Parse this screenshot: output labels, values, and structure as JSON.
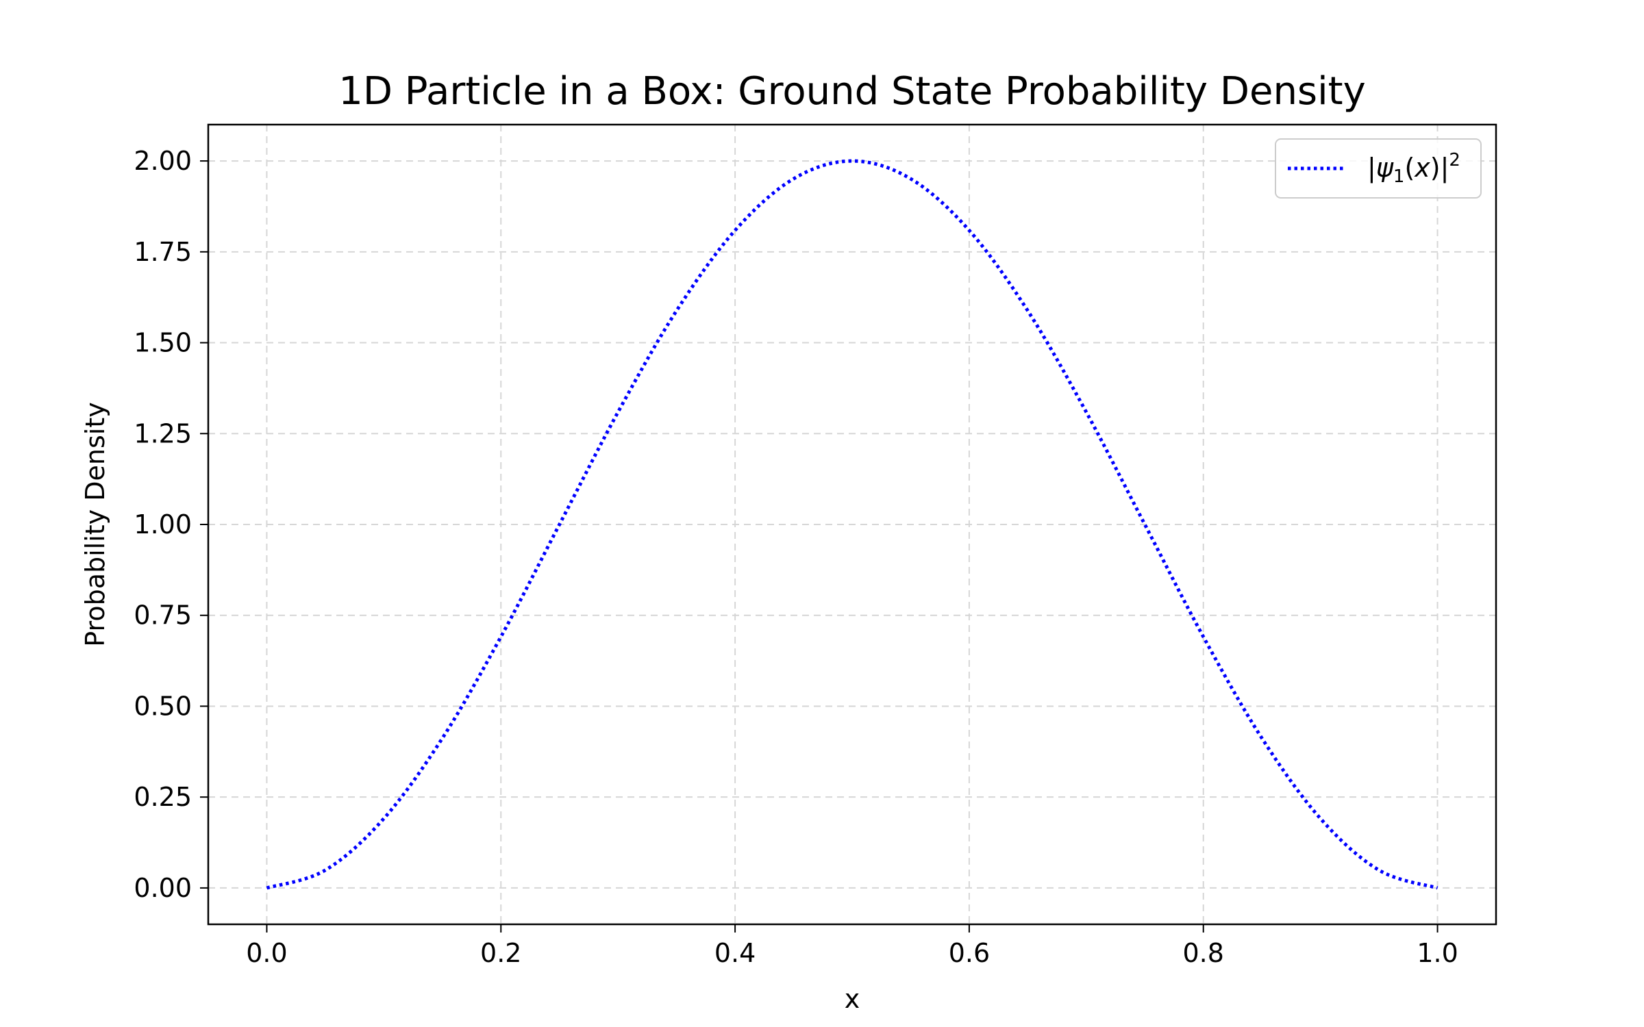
{
  "chart_data": {
    "type": "line",
    "title": "1D Particle in a Box: Ground State Probability Density",
    "xlabel": "x",
    "ylabel": "Probability Density",
    "xlim": [
      -0.05,
      1.05
    ],
    "ylim": [
      -0.1,
      2.1
    ],
    "xticks": [
      0.0,
      0.2,
      0.4,
      0.6,
      0.8,
      1.0
    ],
    "xtick_labels": [
      "0.0",
      "0.2",
      "0.4",
      "0.6",
      "0.8",
      "1.0"
    ],
    "yticks": [
      0.0,
      0.25,
      0.5,
      0.75,
      1.0,
      1.25,
      1.5,
      1.75,
      2.0
    ],
    "ytick_labels": [
      "0.00",
      "0.25",
      "0.50",
      "0.75",
      "1.00",
      "1.25",
      "1.50",
      "1.75",
      "2.00"
    ],
    "grid": true,
    "legend_position": "top-right",
    "series": [
      {
        "name": "|ψ1(x)|2",
        "name_parts": {
          "bar_open": "|",
          "psi": "ψ",
          "sub": "1",
          "open": "(",
          "var": "x",
          "close": ")",
          "bar_close": "|",
          "sup": "2"
        },
        "color": "#0000ff",
        "line_style": "dotted",
        "x": [
          0.0,
          0.05,
          0.1,
          0.15,
          0.2,
          0.25,
          0.3,
          0.35,
          0.4,
          0.45,
          0.5,
          0.55,
          0.6,
          0.65,
          0.7,
          0.75,
          0.8,
          0.85,
          0.9,
          0.95,
          1.0
        ],
        "y": [
          0.0,
          0.049,
          0.191,
          0.412,
          0.691,
          1.0,
          1.309,
          1.588,
          1.809,
          1.951,
          2.0,
          1.951,
          1.809,
          1.588,
          1.309,
          1.0,
          0.691,
          0.412,
          0.191,
          0.049,
          0.0
        ]
      }
    ]
  }
}
